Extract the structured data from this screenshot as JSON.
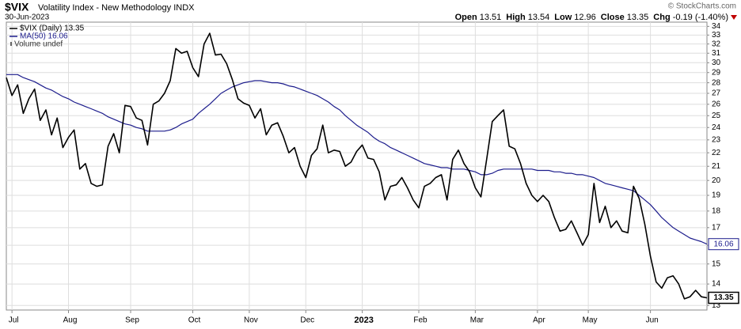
{
  "chart_data": {
    "type": "line",
    "title": "$VIX",
    "subtitle": "Volatility Index - New Methodology INDX",
    "date": "30-Jun-2023",
    "credit": "© StockCharts.com",
    "quote": [
      {
        "label": "Open",
        "value": 13.51
      },
      {
        "label": "High",
        "value": 13.54
      },
      {
        "label": "Low",
        "value": 12.96
      },
      {
        "label": "Close",
        "value": 13.35
      }
    ],
    "change_label": "Chg",
    "change": "-0.19 (-1.40%)",
    "volume_note": "Volume undef",
    "log_scale": true,
    "grid": true,
    "ylim": [
      12.8,
      34.5
    ],
    "yticks": [
      13,
      14,
      15,
      16,
      17,
      18,
      19,
      20,
      21,
      22,
      23,
      24,
      25,
      26,
      27,
      28,
      29,
      30,
      31,
      32,
      33,
      34
    ],
    "categories": [
      null,
      "Jul",
      null,
      null,
      null,
      null,
      null,
      null,
      null,
      null,
      null,
      "Aug",
      null,
      null,
      null,
      null,
      null,
      null,
      null,
      null,
      null,
      null,
      "Sep",
      null,
      null,
      null,
      null,
      null,
      null,
      null,
      null,
      null,
      null,
      "Oct",
      null,
      null,
      null,
      null,
      null,
      null,
      null,
      null,
      null,
      "Nov",
      null,
      null,
      null,
      null,
      null,
      null,
      null,
      null,
      null,
      "Dec",
      null,
      null,
      null,
      null,
      null,
      null,
      null,
      null,
      null,
      "2023",
      null,
      null,
      null,
      null,
      null,
      null,
      null,
      null,
      null,
      "Feb",
      null,
      null,
      null,
      null,
      null,
      null,
      null,
      null,
      null,
      "Mar",
      null,
      null,
      null,
      null,
      null,
      null,
      null,
      null,
      null,
      null,
      "Apr",
      null,
      null,
      null,
      null,
      null,
      null,
      null,
      null,
      "May",
      null,
      null,
      null,
      null,
      null,
      null,
      null,
      null,
      null,
      null,
      "Jun",
      null,
      null,
      null,
      null,
      null,
      null,
      null,
      null,
      null,
      null
    ],
    "series": [
      {
        "name": "$VIX (Daily) 13.35",
        "color": "#000000",
        "values": [
          28.5,
          26.8,
          27.8,
          25.2,
          26.5,
          27.4,
          24.6,
          25.5,
          23.4,
          24.8,
          22.4,
          23.2,
          23.8,
          20.8,
          21.2,
          19.8,
          19.6,
          19.7,
          22.5,
          23.5,
          22.0,
          25.9,
          25.8,
          24.8,
          24.6,
          22.6,
          26.0,
          26.3,
          27.0,
          28.2,
          31.5,
          31.0,
          31.2,
          29.5,
          28.6,
          32.0,
          33.2,
          30.8,
          30.9,
          29.9,
          28.3,
          26.5,
          26.1,
          25.9,
          24.8,
          25.6,
          23.4,
          24.2,
          24.4,
          23.3,
          22.0,
          22.4,
          21.0,
          20.2,
          21.8,
          22.3,
          24.2,
          22.0,
          22.2,
          22.1,
          21.0,
          21.3,
          22.1,
          22.6,
          21.6,
          21.5,
          20.6,
          18.7,
          19.6,
          19.7,
          20.2,
          19.5,
          18.7,
          18.2,
          19.6,
          19.8,
          20.2,
          20.4,
          18.7,
          21.5,
          22.2,
          21.2,
          20.6,
          19.5,
          18.9,
          21.5,
          24.5,
          25.0,
          25.5,
          22.5,
          22.3,
          21.2,
          19.8,
          19.0,
          18.6,
          19.0,
          18.6,
          17.6,
          16.8,
          16.9,
          17.4,
          16.7,
          16.0,
          16.6,
          19.8,
          17.3,
          18.3,
          17.0,
          17.4,
          16.8,
          16.7,
          19.6,
          18.8,
          17.2,
          15.4,
          14.1,
          13.8,
          14.3,
          14.4,
          14.0,
          13.3,
          13.4,
          13.7,
          13.4,
          13.35
        ]
      },
      {
        "name": "MA(50) 16.06",
        "color": "#1c1c8c",
        "values": [
          28.8,
          28.8,
          28.8,
          28.5,
          28.3,
          28.1,
          27.8,
          27.5,
          27.3,
          27.0,
          26.7,
          26.5,
          26.2,
          26.0,
          25.8,
          25.6,
          25.4,
          25.2,
          24.9,
          24.7,
          24.5,
          24.3,
          24.2,
          24.0,
          23.9,
          23.7,
          23.7,
          23.7,
          23.7,
          23.8,
          24.0,
          24.3,
          24.5,
          24.7,
          25.2,
          25.6,
          26.0,
          26.5,
          27.0,
          27.3,
          27.6,
          27.8,
          28.0,
          28.1,
          28.2,
          28.2,
          28.1,
          28.0,
          28.0,
          27.9,
          27.7,
          27.6,
          27.4,
          27.2,
          27.0,
          26.8,
          26.5,
          26.2,
          25.8,
          25.5,
          25.0,
          24.6,
          24.2,
          23.9,
          23.6,
          23.2,
          22.9,
          22.7,
          22.4,
          22.2,
          22.0,
          21.8,
          21.6,
          21.4,
          21.2,
          21.1,
          21.0,
          20.9,
          20.9,
          20.8,
          20.8,
          20.8,
          20.7,
          20.6,
          20.4,
          20.4,
          20.5,
          20.7,
          20.8,
          20.8,
          20.8,
          20.8,
          20.8,
          20.8,
          20.7,
          20.7,
          20.7,
          20.6,
          20.6,
          20.5,
          20.5,
          20.4,
          20.4,
          20.3,
          20.2,
          20.0,
          19.8,
          19.7,
          19.6,
          19.5,
          19.4,
          19.3,
          19.0,
          18.7,
          18.4,
          18.0,
          17.6,
          17.3,
          17.0,
          16.8,
          16.6,
          16.4,
          16.3,
          16.2,
          16.06
        ]
      }
    ]
  }
}
